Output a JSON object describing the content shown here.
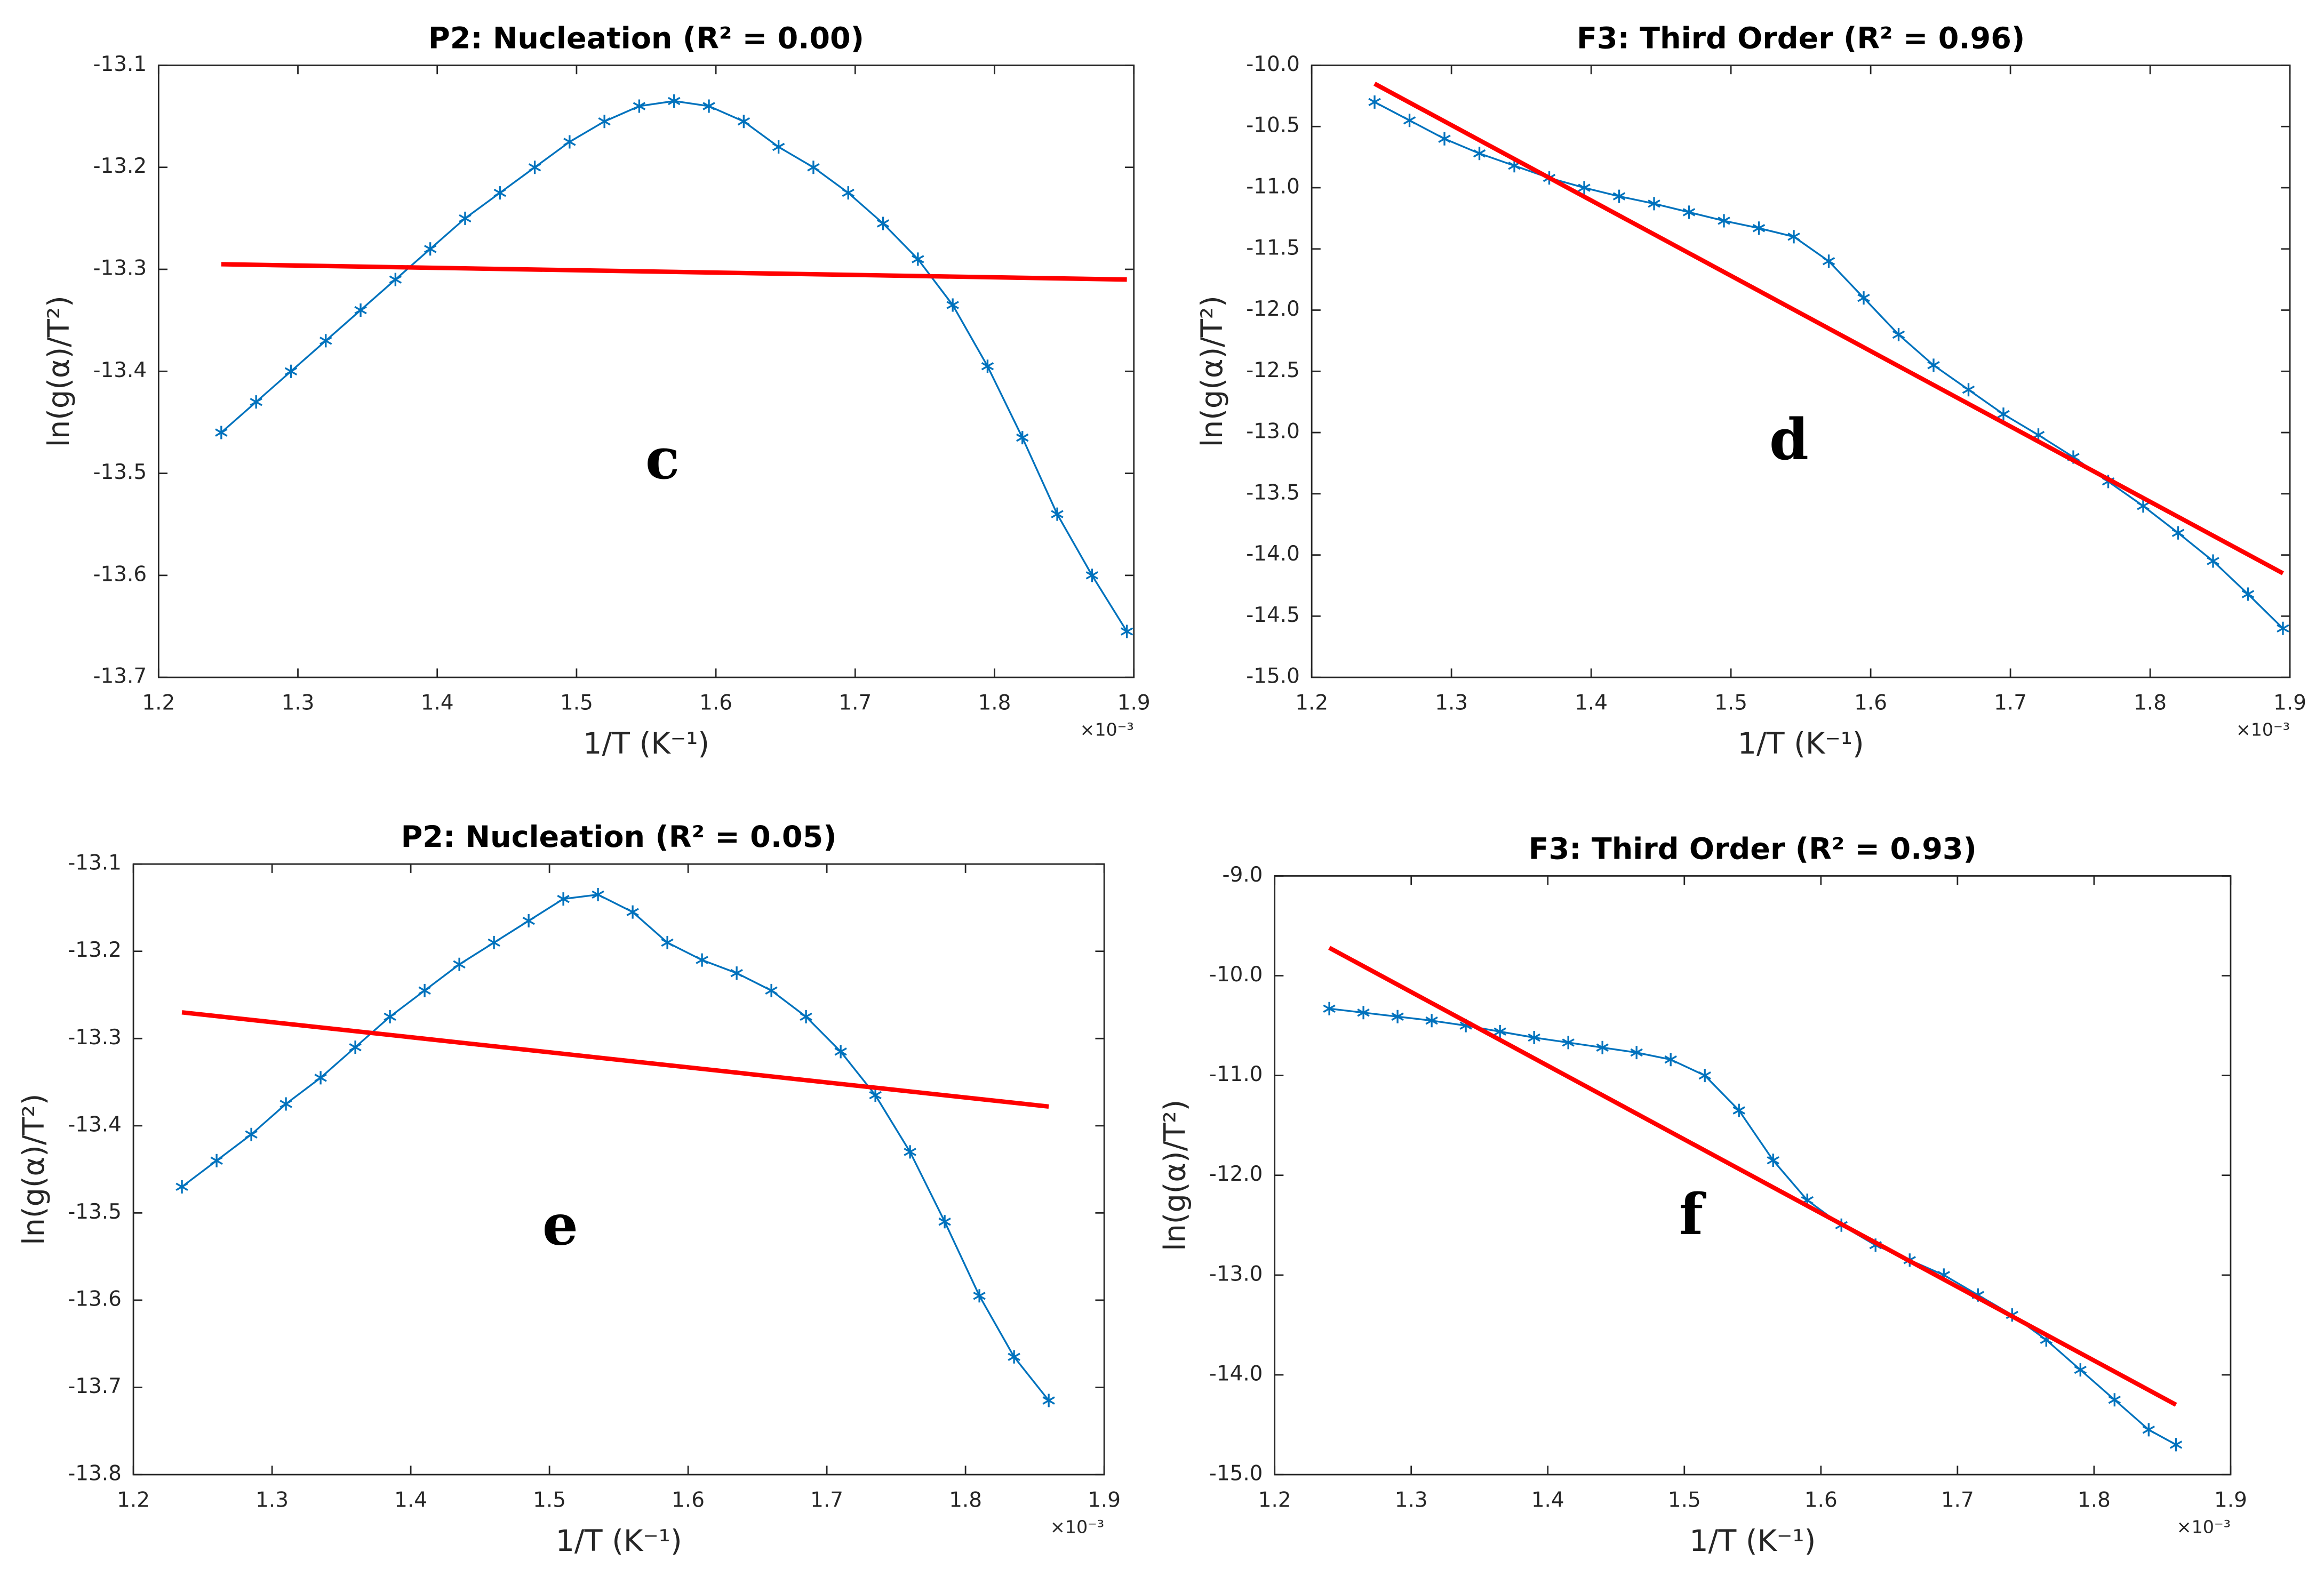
{
  "chart_data": [
    {
      "type": "line",
      "title": "P2:  Nucleation  (R² = 0.00)",
      "xlabel": "1/T  (K⁻¹)",
      "ylabel": "ln(g(α)/T²)",
      "x_multiplier": "×10⁻³",
      "annotation": "c",
      "xlim": [
        1.2,
        1.9
      ],
      "xticks": [
        1.2,
        1.3,
        1.4,
        1.5,
        1.6,
        1.7,
        1.8,
        1.9
      ],
      "ylim": [
        -13.7,
        -13.1
      ],
      "yticks": [
        -13.7,
        -13.6,
        -13.5,
        -13.4,
        -13.3,
        -13.2,
        -13.1
      ],
      "x": [
        1.245,
        1.27,
        1.295,
        1.32,
        1.345,
        1.37,
        1.395,
        1.42,
        1.445,
        1.47,
        1.495,
        1.52,
        1.545,
        1.57,
        1.595,
        1.62,
        1.645,
        1.67,
        1.695,
        1.72,
        1.745,
        1.77,
        1.795,
        1.82,
        1.845,
        1.87,
        1.895
      ],
      "series": [
        {
          "color": "#0072bd",
          "marker": "asterisk",
          "values": [
            -13.46,
            -13.43,
            -13.4,
            -13.37,
            -13.34,
            -13.31,
            -13.28,
            -13.25,
            -13.225,
            -13.2,
            -13.175,
            -13.155,
            -13.14,
            -13.135,
            -13.14,
            -13.155,
            -13.18,
            -13.2,
            -13.225,
            -13.255,
            -13.29,
            -13.335,
            -13.395,
            -13.465,
            -13.54,
            -13.6,
            -13.655
          ]
        },
        {
          "color": "#ff0000",
          "x": [
            1.245,
            1.895
          ],
          "values": [
            -13.295,
            -13.31
          ]
        }
      ]
    },
    {
      "type": "line",
      "title": "F3:  Third Order  (R² = 0.96)",
      "xlabel": "1/T  (K⁻¹)",
      "ylabel": "ln(g(α)/T²)",
      "x_multiplier": "×10⁻³",
      "annotation": "d",
      "xlim": [
        1.2,
        1.9
      ],
      "xticks": [
        1.2,
        1.3,
        1.4,
        1.5,
        1.6,
        1.7,
        1.8,
        1.9
      ],
      "ylim": [
        -15,
        -10
      ],
      "yticks": [
        {
          "value": -15,
          "label": "-15.0"
        },
        -14.5,
        {
          "value": -14,
          "label": "-14.0"
        },
        -13.5,
        {
          "value": -13,
          "label": "-13.0"
        },
        -12.5,
        {
          "value": -12,
          "label": "-12.0"
        },
        -11.5,
        {
          "value": -11,
          "label": "-11.0"
        },
        -10.5,
        {
          "value": -10,
          "label": "-10.0"
        }
      ],
      "x": [
        1.245,
        1.27,
        1.295,
        1.32,
        1.345,
        1.37,
        1.395,
        1.42,
        1.445,
        1.47,
        1.495,
        1.52,
        1.545,
        1.57,
        1.595,
        1.62,
        1.645,
        1.67,
        1.695,
        1.72,
        1.745,
        1.77,
        1.795,
        1.82,
        1.845,
        1.87,
        1.895
      ],
      "series": [
        {
          "color": "#0072bd",
          "marker": "asterisk",
          "values": [
            -10.3,
            -10.45,
            -10.6,
            -10.72,
            -10.82,
            -10.92,
            -11.0,
            -11.07,
            -11.13,
            -11.2,
            -11.27,
            -11.33,
            -11.4,
            -11.6,
            -11.9,
            -12.2,
            -12.45,
            -12.65,
            -12.85,
            -13.02,
            -13.2,
            -13.4,
            -13.6,
            -13.82,
            -14.05,
            -14.32,
            -14.6
          ]
        },
        {
          "color": "#ff0000",
          "x": [
            1.245,
            1.895
          ],
          "values": [
            -10.15,
            -14.15
          ]
        }
      ]
    },
    {
      "type": "line",
      "title": "P2:  Nucleation  (R² = 0.05)",
      "xlabel": "1/T  (K⁻¹)",
      "ylabel": "ln(g(α)/T²)",
      "x_multiplier": "×10⁻³",
      "annotation": "e",
      "xlim": [
        1.2,
        1.9
      ],
      "xticks": [
        1.2,
        1.3,
        1.4,
        1.5,
        1.6,
        1.7,
        1.8,
        1.9
      ],
      "ylim": [
        -13.8,
        -13.1
      ],
      "yticks": [
        -13.8,
        -13.7,
        -13.6,
        -13.5,
        -13.4,
        -13.3,
        -13.2,
        -13.1
      ],
      "x": [
        1.235,
        1.26,
        1.285,
        1.31,
        1.335,
        1.36,
        1.385,
        1.41,
        1.435,
        1.46,
        1.485,
        1.51,
        1.535,
        1.56,
        1.585,
        1.61,
        1.635,
        1.66,
        1.685,
        1.71,
        1.735,
        1.76,
        1.785,
        1.81,
        1.835,
        1.86
      ],
      "series": [
        {
          "color": "#0072bd",
          "marker": "asterisk",
          "values": [
            -13.47,
            -13.44,
            -13.41,
            -13.375,
            -13.345,
            -13.31,
            -13.275,
            -13.245,
            -13.215,
            -13.19,
            -13.165,
            -13.14,
            -13.135,
            -13.155,
            -13.19,
            -13.21,
            -13.225,
            -13.245,
            -13.275,
            -13.315,
            -13.365,
            -13.43,
            -13.51,
            -13.595,
            -13.665,
            -13.715
          ]
        },
        {
          "color": "#ff0000",
          "x": [
            1.235,
            1.86
          ],
          "values": [
            -13.27,
            -13.378
          ]
        }
      ]
    },
    {
      "type": "line",
      "title": "F3:  Third Order  (R² = 0.93)",
      "xlabel": "1/T  (K⁻¹)",
      "ylabel": "ln(g(α)/T²)",
      "x_multiplier": "×10⁻³",
      "annotation": "f",
      "xlim": [
        1.2,
        1.9
      ],
      "xticks": [
        1.2,
        1.3,
        1.4,
        1.5,
        1.6,
        1.7,
        1.8,
        1.9
      ],
      "ylim": [
        -15,
        -9
      ],
      "yticks": [
        {
          "value": -15,
          "label": "-15.0"
        },
        {
          "value": -14,
          "label": "-14.0"
        },
        {
          "value": -13,
          "label": "-13.0"
        },
        {
          "value": -12,
          "label": "-12.0"
        },
        {
          "value": -11,
          "label": "-11.0"
        },
        {
          "value": -10,
          "label": "-10.0"
        },
        {
          "value": -9,
          "label": "-9.0"
        }
      ],
      "x": [
        1.24,
        1.265,
        1.29,
        1.315,
        1.34,
        1.365,
        1.39,
        1.415,
        1.44,
        1.465,
        1.49,
        1.515,
        1.54,
        1.565,
        1.59,
        1.615,
        1.64,
        1.665,
        1.69,
        1.715,
        1.74,
        1.765,
        1.79,
        1.815,
        1.84,
        1.86
      ],
      "series": [
        {
          "color": "#0072bd",
          "marker": "asterisk",
          "values": [
            -10.33,
            -10.37,
            -10.41,
            -10.45,
            -10.5,
            -10.56,
            -10.62,
            -10.67,
            -10.72,
            -10.77,
            -10.84,
            -11.0,
            -11.35,
            -11.85,
            -12.25,
            -12.5,
            -12.7,
            -12.85,
            -13.0,
            -13.2,
            -13.4,
            -13.65,
            -13.95,
            -14.25,
            -14.55,
            -14.7
          ]
        },
        {
          "color": "#ff0000",
          "x": [
            1.24,
            1.86
          ],
          "values": [
            -9.72,
            -14.3
          ]
        }
      ]
    }
  ]
}
